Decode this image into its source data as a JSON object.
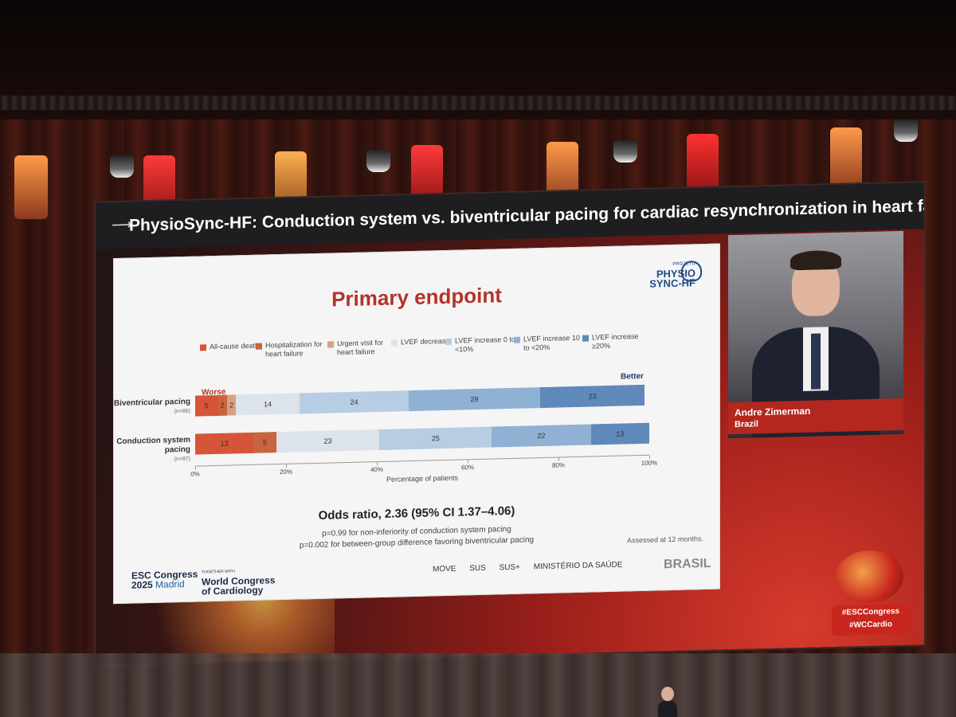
{
  "header": {
    "title": "PhysioSync-HF: Conduction system vs. biventricular pacing for cardiac resynchronization in heart fa..."
  },
  "slide": {
    "title": "Primary endpoint",
    "logo": {
      "top": "PROJETO",
      "line1": "PHYSIO",
      "line2": "SYNC-HF"
    },
    "legend": [
      {
        "label": "All-cause death",
        "color": "#d4553a"
      },
      {
        "label": "Hospitalization for heart failure",
        "color": "#c8643f"
      },
      {
        "label": "Urgent visit for heart failure",
        "color": "#d9a080"
      },
      {
        "label": "LVEF decrease",
        "color": "#dde3ea"
      },
      {
        "label": "LVEF increase 0 to <10%",
        "color": "#b7cde3"
      },
      {
        "label": "LVEF increase 10 to <20%",
        "color": "#8fb1d4"
      },
      {
        "label": "LVEF increase ≥20%",
        "color": "#5f89b8"
      }
    ],
    "worse_label": "Worse",
    "better_label": "Better",
    "rows": [
      {
        "name": "Biventricular pacing",
        "n": "(n=86)"
      },
      {
        "name": "Conduction system pacing",
        "n": "(n=87)"
      }
    ],
    "x_axis_title": "Percentage of patients",
    "x_ticks": [
      "0%",
      "20%",
      "40%",
      "60%",
      "80%",
      "100%"
    ],
    "odds_ratio": "Odds ratio, 2.36 (95% CI 1.37–4.06)",
    "p1": "p=0.99 for non-inferiority of conduction system pacing",
    "p2": "p=0.002 for between-group difference favoring biventricular pacing",
    "assessed": "Assessed at 12 months.",
    "esc": {
      "line1": "ESC Congress",
      "year": "2025",
      "city": "Madrid"
    },
    "wcc": {
      "small": "TOGETHER WITH",
      "line1": "World Congress",
      "line2": "of Cardiology"
    },
    "sponsors": [
      "MOVE",
      "SUS",
      "SUS+",
      "MINISTÉRIO DA SAÚDE"
    ],
    "brasil": "BRASIL"
  },
  "chart_data": {
    "type": "bar",
    "stacked": true,
    "orientation": "horizontal",
    "categories": [
      "Biventricular pacing",
      "Conduction system pacing"
    ],
    "series": [
      {
        "name": "All-cause death",
        "values": [
          5,
          13
        ]
      },
      {
        "name": "Hospitalization for heart failure",
        "values": [
          2,
          5
        ]
      },
      {
        "name": "Urgent visit for heart failure",
        "values": [
          2,
          0
        ]
      },
      {
        "name": "LVEF decrease",
        "values": [
          14,
          23
        ]
      },
      {
        "name": "LVEF increase 0 to <10%",
        "values": [
          24,
          25
        ]
      },
      {
        "name": "LVEF increase 10 to <20%",
        "values": [
          29,
          22
        ]
      },
      {
        "name": "LVEF increase ≥20%",
        "values": [
          23,
          13
        ]
      }
    ],
    "xlabel": "Percentage of patients",
    "xlim": [
      0,
      100
    ]
  },
  "speaker": {
    "name": "Andre Zimerman",
    "country": "Brazil"
  },
  "hashtags": [
    "#ESCCongress",
    "#WCCardio"
  ]
}
